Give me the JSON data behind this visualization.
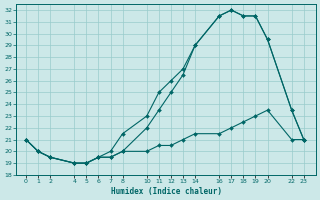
{
  "xlabel": "Humidex (Indice chaleur)",
  "bg_color": "#cce8e8",
  "line_color": "#006666",
  "grid_color": "#99cccc",
  "ylim": [
    18,
    32.5
  ],
  "xlim": [
    -0.8,
    24.0
  ],
  "yticks": [
    18,
    19,
    20,
    21,
    22,
    23,
    24,
    25,
    26,
    27,
    28,
    29,
    30,
    31,
    32
  ],
  "xtick_positions": [
    0,
    1,
    2,
    4,
    5,
    6,
    7,
    8,
    10,
    11,
    12,
    13,
    14,
    16,
    17,
    18,
    19,
    20,
    22,
    23
  ],
  "xtick_labels": [
    "0",
    "1",
    "2",
    "4",
    "5",
    "6",
    "7",
    "8",
    "10",
    "11",
    "12",
    "13",
    "14",
    "16",
    "17",
    "18",
    "19",
    "20",
    "22",
    "23"
  ],
  "line1_x": [
    0,
    1,
    2,
    4,
    5,
    6,
    7,
    8,
    10,
    11,
    12,
    13,
    14,
    16,
    17,
    18,
    19,
    20,
    22,
    23
  ],
  "line1_y": [
    21.0,
    20.0,
    19.5,
    19.0,
    19.0,
    19.5,
    20.0,
    21.5,
    23.0,
    25.0,
    26.0,
    27.0,
    29.0,
    31.5,
    32.0,
    31.5,
    31.5,
    29.5,
    23.5,
    21.0
  ],
  "line2_x": [
    0,
    1,
    2,
    4,
    5,
    6,
    7,
    8,
    10,
    11,
    12,
    13,
    14,
    16,
    17,
    18,
    19,
    20,
    22,
    23
  ],
  "line2_y": [
    21.0,
    20.0,
    19.5,
    19.0,
    19.0,
    19.5,
    19.5,
    20.0,
    22.0,
    23.5,
    25.0,
    26.5,
    29.0,
    31.5,
    32.0,
    31.5,
    31.5,
    29.5,
    23.5,
    21.0
  ],
  "line3_x": [
    0,
    1,
    2,
    4,
    5,
    6,
    7,
    8,
    10,
    11,
    12,
    13,
    14,
    16,
    17,
    18,
    19,
    20,
    22,
    23
  ],
  "line3_y": [
    21.0,
    20.0,
    19.5,
    19.0,
    19.0,
    19.5,
    19.5,
    20.0,
    20.0,
    20.5,
    20.5,
    21.0,
    21.5,
    21.5,
    22.0,
    22.5,
    23.0,
    23.5,
    21.0,
    21.0
  ]
}
